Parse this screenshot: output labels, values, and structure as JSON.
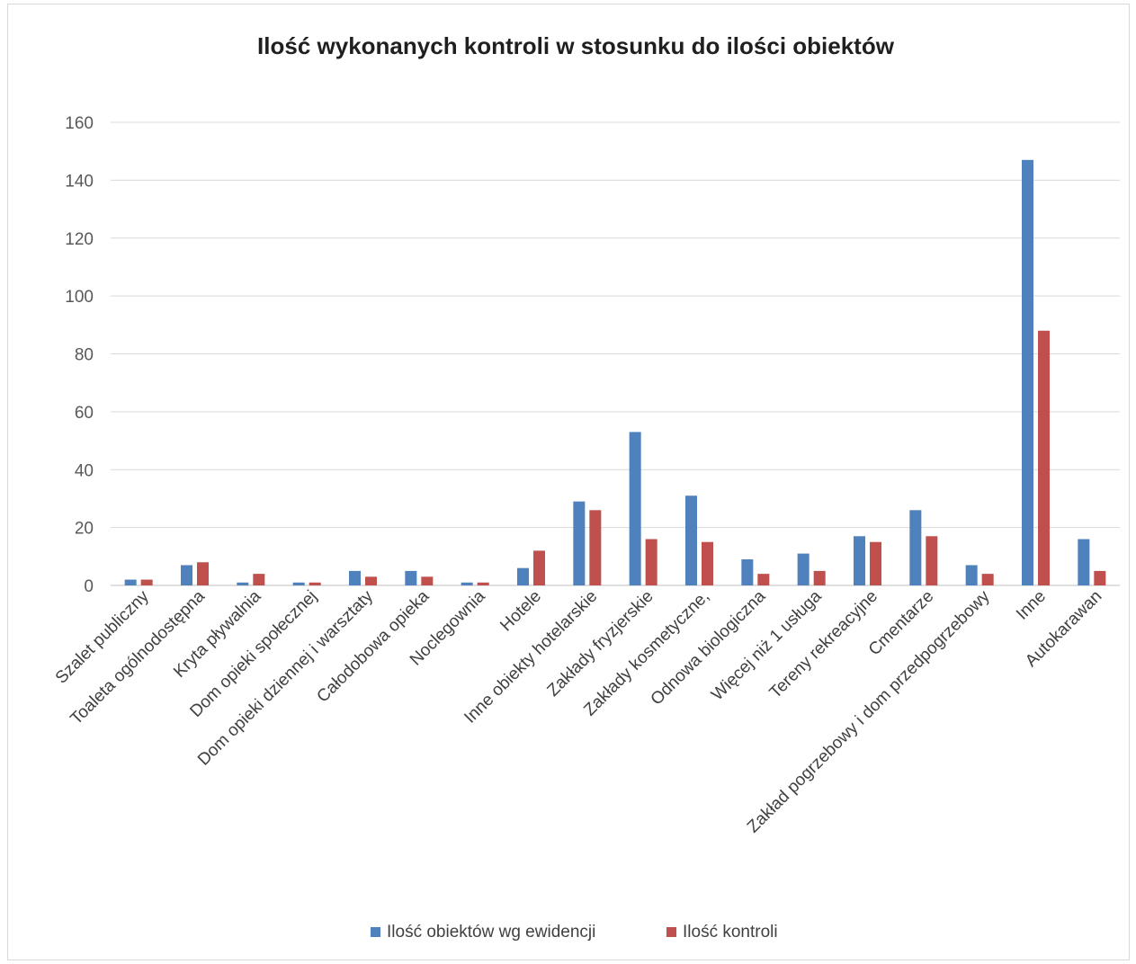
{
  "chart_data": {
    "type": "bar",
    "title": "Ilość wykonanych kontroli w stosunku do ilości obiektów",
    "xlabel": "",
    "ylabel": "",
    "ylim": [
      0,
      160
    ],
    "yticks": [
      0,
      20,
      40,
      60,
      80,
      100,
      120,
      140,
      160
    ],
    "grid": true,
    "legend_position": "bottom",
    "categories": [
      "Szalet publiczny",
      "Toaleta ogólnodostępna",
      "Kryta pływalnia",
      "Dom opieki społecznej",
      "Dom opieki dziennej i warsztaty",
      "Całodobowa opieka",
      "Noclegownia",
      "Hotele",
      "Inne obiekty hotelarskie",
      "Zakłady fryzjerskie",
      "Zakłady kosmetyczne,",
      "Odnowa biologiczna",
      "Więcej niż 1 usługa",
      "Tereny rekreacyjne",
      "Cmentarze",
      "Zakład pogrzebowy i dom przedpogrzebowy",
      "Inne",
      "Autokarawan"
    ],
    "series": [
      {
        "name": "Ilość obiektów wg ewidencji",
        "color": "#4f81bd",
        "values": [
          2,
          7,
          1,
          1,
          5,
          5,
          1,
          6,
          29,
          53,
          31,
          9,
          11,
          17,
          26,
          7,
          147,
          16
        ]
      },
      {
        "name": "Ilość kontroli",
        "color": "#c0504d",
        "values": [
          2,
          8,
          4,
          1,
          3,
          3,
          1,
          12,
          26,
          16,
          15,
          4,
          5,
          15,
          17,
          4,
          88,
          5
        ]
      }
    ]
  }
}
